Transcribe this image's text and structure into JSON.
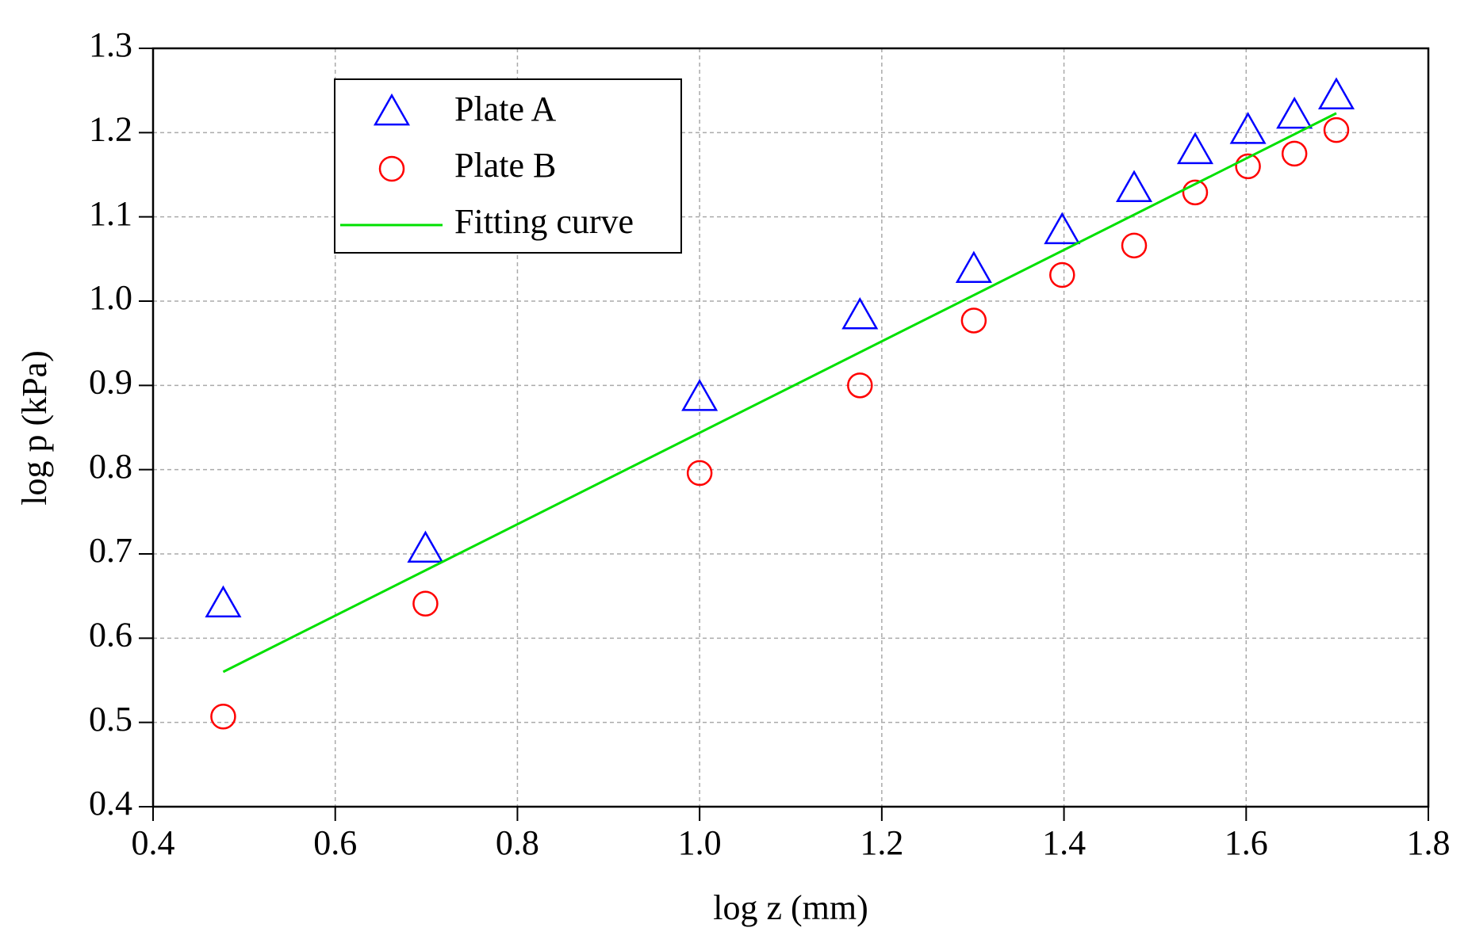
{
  "chart_data": {
    "type": "scatter",
    "xlabel": "log z (mm)",
    "ylabel": "log p (kPa)",
    "xlim": [
      0.4,
      1.8
    ],
    "ylim": [
      0.4,
      1.3
    ],
    "xticks": [
      0.4,
      0.6,
      0.8,
      {
        "value": 1,
        "label": "1.0"
      },
      1.2,
      1.4,
      1.6,
      1.8
    ],
    "yticks": [
      0.4,
      0.5,
      0.6,
      0.7,
      0.8,
      0.9,
      {
        "value": 1,
        "label": "1.0"
      },
      1.1,
      1.2,
      1.3
    ],
    "grid": true,
    "legend": "upper left",
    "series": [
      {
        "name": "Plate A",
        "color": "#0000ff",
        "marker": "triangle",
        "x": [
          0.477,
          0.699,
          1.0,
          1.176,
          1.301,
          1.398,
          1.477,
          1.544,
          1.602,
          1.653,
          1.699
        ],
        "values": [
          0.64,
          0.705,
          0.885,
          0.982,
          1.037,
          1.083,
          1.133,
          1.178,
          1.202,
          1.22,
          1.243
        ]
      },
      {
        "name": "Plate B",
        "color": "#ff0000",
        "marker": "circle",
        "x": [
          0.477,
          0.699,
          1.0,
          1.176,
          1.301,
          1.398,
          1.477,
          1.544,
          1.602,
          1.653,
          1.699
        ],
        "values": [
          0.507,
          0.641,
          0.796,
          0.9,
          0.977,
          1.031,
          1.066,
          1.129,
          1.16,
          1.175,
          1.203
        ]
      },
      {
        "name": "Fitting curve",
        "color": "#00e000",
        "marker": "line",
        "x": [
          0.477,
          1.699
        ],
        "values": [
          0.56,
          1.223
        ]
      }
    ]
  }
}
